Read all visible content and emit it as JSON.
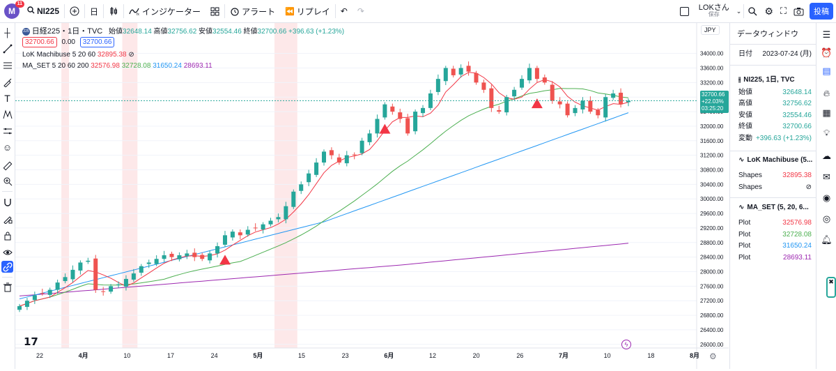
{
  "topbar": {
    "logo_letter": "M",
    "notification_count": "11",
    "symbol": "NI225",
    "interval": "日",
    "indicators_label": "インジケーター",
    "alert_label": "アラート",
    "replay_label": "リプレイ",
    "user_label": "LOKさん",
    "save_label": "保存",
    "publish_label": "投稿"
  },
  "legend": {
    "title": "日経225・1日・TVC",
    "ohlc": [
      {
        "label": "始値",
        "value": "32648.14"
      },
      {
        "label": "高値",
        "value": "32756.62"
      },
      {
        "label": "安値",
        "value": "32554.46"
      },
      {
        "label": "終値",
        "value": "32700.66"
      }
    ],
    "change": "+396.63 (+1.23%)",
    "sell_price": "32700.66",
    "spread": "0.00",
    "buy_price": "32700.66",
    "indicator1": {
      "name": "LoK Machibuse 5 20 60",
      "value": "32895.38"
    },
    "indicator2": {
      "name": "MA_SET 5 20 60 200",
      "values": [
        "32576.98",
        "32728.08",
        "31650.24",
        "28693.11"
      ]
    }
  },
  "price_axis": {
    "currency": "JPY",
    "ticks": [
      "34000.00",
      "33600.00",
      "33200.00",
      "32800.00",
      "32400.00",
      "32000.00",
      "31600.00",
      "31200.00",
      "30800.00",
      "30400.00",
      "30000.00",
      "29600.00",
      "29200.00",
      "28800.00",
      "28400.00",
      "28000.00",
      "27600.00",
      "27200.00",
      "26800.00",
      "26400.00",
      "26000.00"
    ],
    "current_price": "32700.66",
    "current_change": "+22.03%",
    "countdown": "03:25:20"
  },
  "time_axis": {
    "ticks": [
      "22",
      "4月",
      "10",
      "17",
      "24",
      "5月",
      "15",
      "23",
      "6月",
      "12",
      "20",
      "26",
      "7月",
      "10",
      "18",
      "8月"
    ]
  },
  "data_window": {
    "title": "データウィンドウ",
    "date_label": "日付",
    "date_value": "2023-07-24 (月)",
    "symbol_header": "NI225, 1日, TVC",
    "rows": [
      {
        "label": "始値",
        "value": "32648.14"
      },
      {
        "label": "高値",
        "value": "32756.62"
      },
      {
        "label": "安値",
        "value": "32554.46"
      },
      {
        "label": "終値",
        "value": "32700.66"
      },
      {
        "label": "変動",
        "value": "+396.63 (+1.23%)"
      }
    ],
    "indicator1_header": "LoK Machibuse (5...",
    "indicator1_rows": [
      {
        "label": "Shapes",
        "value": "32895.38"
      },
      {
        "label": "Shapes",
        "value": "⊘"
      }
    ],
    "indicator2_header": "MA_SET (5, 20, 6...",
    "indicator2_rows": [
      {
        "label": "Plot",
        "value": "32576.98"
      },
      {
        "label": "Plot",
        "value": "32728.08"
      },
      {
        "label": "Plot",
        "value": "31650.24"
      },
      {
        "label": "Plot",
        "value": "28693.11"
      }
    ]
  },
  "colors": {
    "up": "#26a69a",
    "down": "#ef5350",
    "ma5": "#f23645",
    "ma20": "#4caf50",
    "ma60": "#2196f3",
    "ma200": "#9c27b0",
    "highlight": "#fde2e4",
    "accent": "#2962ff"
  },
  "chart_data": {
    "type": "candlestick",
    "title": "日経225・1日・TVC",
    "y_range": [
      25900,
      34300
    ],
    "x_axis_labels": [
      "22",
      "4月",
      "10",
      "17",
      "24",
      "5月",
      "15",
      "23",
      "6月",
      "12",
      "20",
      "26",
      "7月",
      "10",
      "18",
      "8月"
    ],
    "candles_close": [
      27050,
      27200,
      27350,
      27400,
      27500,
      27700,
      27850,
      28050,
      28250,
      28300,
      27500,
      27450,
      27600,
      27650,
      27800,
      27950,
      28150,
      28250,
      28350,
      28450,
      28400,
      28450,
      28500,
      28400,
      28350,
      28500,
      28700,
      29000,
      29100,
      29000,
      29150,
      29200,
      29300,
      29400,
      29500,
      29800,
      30200,
      30400,
      30700,
      31000,
      31300,
      31200,
      31000,
      31200,
      31200,
      31600,
      31800,
      32200,
      32600,
      32400,
      32200,
      31800,
      32400,
      32500,
      32900,
      33300,
      33600,
      33400,
      33600,
      33500,
      33200,
      33000,
      32500,
      32400,
      32800,
      33000,
      33300,
      33600,
      33300,
      33200,
      32700,
      32600,
      32300,
      32500,
      32700,
      32400,
      32300,
      32800,
      32900,
      32600,
      32700
    ],
    "buy_signals": [
      27,
      48,
      68
    ],
    "highlight_bands": [
      [
        6,
        6
      ],
      [
        14,
        15
      ],
      [
        34,
        36
      ]
    ],
    "ma_series": [
      "5",
      "20",
      "60",
      "200"
    ]
  },
  "right_toolbar": [
    "list-icon",
    "alarm-icon",
    "watchlist-icon",
    "hotlist-icon",
    "calendar-icon",
    "ideas-icon",
    "chat-icon",
    "notes-icon",
    "podcast-icon",
    "stream-icon",
    "bell-icon"
  ]
}
